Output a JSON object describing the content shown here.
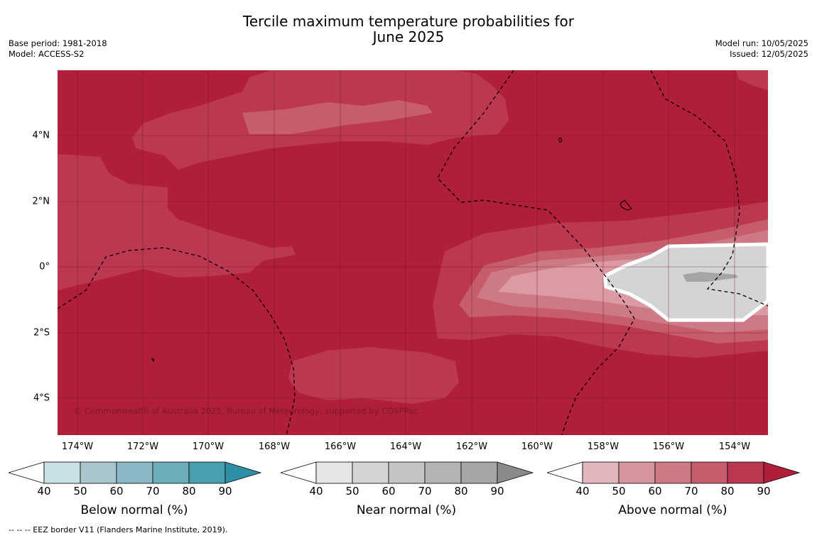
{
  "title_line1": "Tercile maximum temperature probabilities for",
  "title_line2": "June 2025",
  "meta_left": [
    "Base period: 1981-2018",
    "Model: ACCESS-S2"
  ],
  "meta_right": [
    "Model run: 10/05/2025",
    "Issued: 12/05/2025"
  ],
  "map": {
    "lon_labels": [
      "174°W",
      "172°W",
      "170°W",
      "168°W",
      "166°W",
      "164°W",
      "162°W",
      "160°W",
      "158°W",
      "156°W",
      "154°W"
    ],
    "lat_labels": [
      "4°N",
      "2°N",
      "0°",
      "2°S",
      "4°S"
    ],
    "copyright": "© Commonwealth of Australia 2025, Bureau of Meteorology, supported by COSPPac",
    "colors": {
      "above_90": "#b01e3a",
      "above_80": "#bc3850",
      "above_70": "#c75d6c",
      "above_60": "#cd7a84",
      "above_50": "#dc9aa2",
      "near_70": "#d4d4d4",
      "near_80": "#b8b8b8",
      "near_90": "#a5a5a5"
    }
  },
  "legends": [
    {
      "title": "Below normal (%)",
      "ticks": [
        "40",
        "50",
        "60",
        "70",
        "80",
        "90"
      ],
      "colors": [
        "#ffffff",
        "#c8e0e6",
        "#a8c6cc",
        "#8bb8c5",
        "#6eadbc",
        "#4a9fb0",
        "#2f8fa6"
      ]
    },
    {
      "title": "Near normal (%)",
      "ticks": [
        "40",
        "50",
        "60",
        "70",
        "80",
        "90"
      ],
      "colors": [
        "#ffffff",
        "#e6e6e6",
        "#d4d4d4",
        "#c4c4c4",
        "#b4b4b4",
        "#a5a5a5",
        "#8a8a8a"
      ]
    },
    {
      "title": "Above normal (%)",
      "ticks": [
        "40",
        "50",
        "60",
        "70",
        "80",
        "90"
      ],
      "colors": [
        "#ffffff",
        "#e1b7bd",
        "#d6949c",
        "#cd7a84",
        "#c75d6c",
        "#bc3850",
        "#b01e3a"
      ]
    }
  ],
  "footnote": "--  --  -- EEZ border V11 (Flanders Marine Institute, 2019)."
}
